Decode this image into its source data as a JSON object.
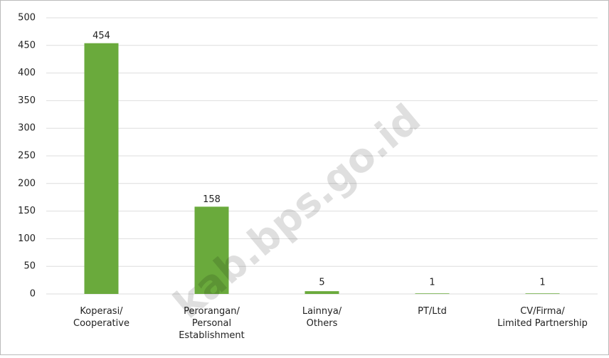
{
  "chart_data": {
    "type": "bar",
    "categories": [
      [
        "Koperasi/",
        "Cooperative"
      ],
      [
        "Perorangan/",
        "Personal",
        "Establishment"
      ],
      [
        "Lainnya/",
        "Others"
      ],
      [
        "PT/Ltd"
      ],
      [
        "CV/Firma/",
        "Limited Partnership"
      ]
    ],
    "values": [
      454,
      158,
      5,
      1,
      1
    ],
    "color": "#6aaa3c",
    "ylim": [
      0,
      500
    ],
    "yticks": [
      0,
      50,
      100,
      150,
      200,
      250,
      300,
      350,
      400,
      450,
      500
    ],
    "grid": true,
    "watermark": "kab.bps.go.id"
  }
}
